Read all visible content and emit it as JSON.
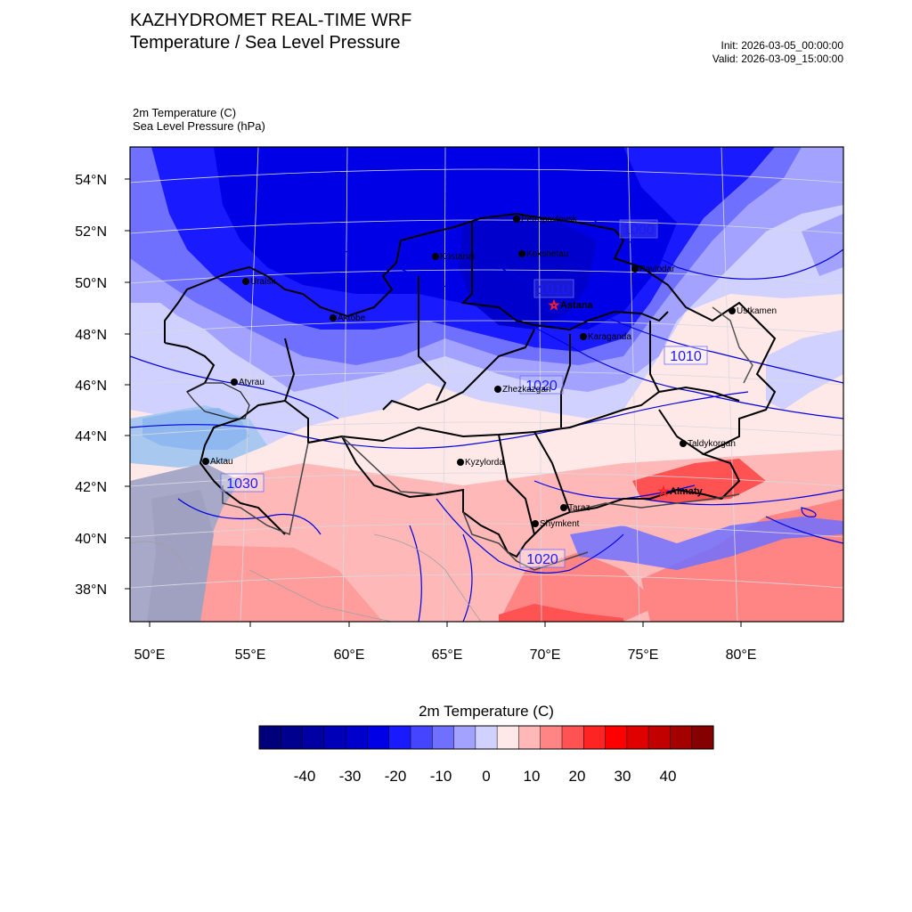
{
  "header": {
    "title": "KAZHYDROMET REAL-TIME WRF",
    "subtitle": "Temperature / Sea Level Pressure",
    "init": "Init: 2026-03-05_00:00:00",
    "valid": "Valid: 2026-03-09_15:00:00"
  },
  "fields": {
    "temp_label": "2m Temperature   (C)",
    "pressure_label": "Sea Level Pressure   (hPa)"
  },
  "axes": {
    "lat_ticks": [
      "54°N",
      "52°N",
      "50°N",
      "48°N",
      "46°N",
      "44°N",
      "42°N",
      "40°N",
      "38°N"
    ],
    "lon_ticks": [
      "50°E",
      "55°E",
      "60°E",
      "65°E",
      "70°E",
      "75°E",
      "80°E"
    ]
  },
  "cities": [
    {
      "name": "Petropavlovsk"
    },
    {
      "name": "Kostanai"
    },
    {
      "name": "Kokshetau"
    },
    {
      "name": "Pavlodar"
    },
    {
      "name": "Uralsk"
    },
    {
      "name": "Astana"
    },
    {
      "name": "Aktobe"
    },
    {
      "name": "Ustkamen"
    },
    {
      "name": "Karaganda"
    },
    {
      "name": "Atyrau"
    },
    {
      "name": "Zhezkazgan"
    },
    {
      "name": "Taldykorgan"
    },
    {
      "name": "Aktau"
    },
    {
      "name": "Kyzylorda"
    },
    {
      "name": "Almaty"
    },
    {
      "name": "Taraz"
    },
    {
      "name": "Shymkent"
    }
  ],
  "isobar_labels": [
    "1000",
    "1010",
    "1010",
    "1020",
    "1030",
    "1020"
  ],
  "colorbar": {
    "title": "2m Temperature  (C)",
    "tick_labels": [
      "-40",
      "-30",
      "-20",
      "-10",
      "0",
      "10",
      "20",
      "30",
      "40"
    ],
    "colors": [
      "#00007a",
      "#00008f",
      "#0000a3",
      "#0000b8",
      "#0000cc",
      "#0000e6",
      "#1a1aff",
      "#4545ff",
      "#7070ff",
      "#a3a3ff",
      "#d1d1ff",
      "#ffe8e8",
      "#ffb8b8",
      "#ff8585",
      "#ff5252",
      "#ff2424",
      "#ff0000",
      "#e00000",
      "#c20000",
      "#a30000",
      "#850000"
    ]
  }
}
